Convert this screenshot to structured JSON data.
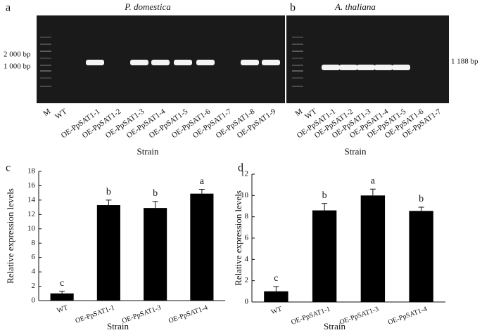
{
  "gels": [
    {
      "label": "a",
      "title": "P. domestica",
      "markers": [
        "2 000 bp",
        "1 000 bp"
      ],
      "xlabel": "Strain",
      "lanes": [
        "M",
        "WT",
        "OE-PpSAT1-1",
        "OE-PpSAT1-2",
        "OE-PpSAT1-3",
        "OE-PpSAT1-4",
        "OE-PpSAT1-5",
        "OE-PpSAT1-6",
        "OE-PpSAT1-7",
        "OE-PpSAT1-8",
        "OE-PpSAT1-9"
      ],
      "bands": [
        false,
        false,
        true,
        false,
        true,
        true,
        true,
        true,
        false,
        true,
        true
      ]
    },
    {
      "label": "b",
      "title": "A. thaliana",
      "markers": [
        "1 188 bp"
      ],
      "xlabel": "Strain",
      "lanes": [
        "M",
        "WT",
        "OE-PpSAT1-1",
        "OE-PpSAT1-2",
        "OE-PpSAT1-3",
        "OE-PpSAT1-4",
        "OE-PpSAT1-5",
        "OE-PpSAT1-6",
        "OE-PpSAT1-7"
      ],
      "bands": [
        false,
        false,
        true,
        true,
        true,
        true,
        true,
        false,
        false
      ]
    }
  ],
  "chart_data": [
    {
      "type": "bar",
      "label": "c",
      "xlabel": "Strain",
      "ylabel": "Relative expression levels",
      "categories": [
        "WT",
        "OE-PpSAT1-1",
        "OE-PpSAT1-3",
        "OE-PpSAT1-4"
      ],
      "values": [
        1.0,
        13.3,
        12.9,
        14.9
      ],
      "errors": [
        0.3,
        0.7,
        0.9,
        0.6
      ],
      "annotations": [
        "c",
        "b",
        "b",
        "a"
      ],
      "color": "#000000",
      "ylim": [
        0,
        18
      ],
      "yticks": [
        0,
        2,
        4,
        6,
        8,
        10,
        12,
        14,
        16,
        18
      ]
    },
    {
      "type": "bar",
      "label": "d",
      "xlabel": "Strain",
      "ylabel": "Relative expression levels",
      "categories": [
        "WT",
        "OE-PpSAT1-1",
        "OE-PpSAT1-3",
        "OE-PpSAT1-4"
      ],
      "values": [
        1.0,
        8.6,
        10.0,
        8.55
      ],
      "errors": [
        0.45,
        0.65,
        0.6,
        0.35
      ],
      "annotations": [
        "c",
        "b",
        "a",
        "b"
      ],
      "color": "#000000",
      "ylim": [
        0,
        12
      ],
      "yticks": [
        0,
        2,
        4,
        6,
        8,
        10,
        12
      ]
    }
  ]
}
